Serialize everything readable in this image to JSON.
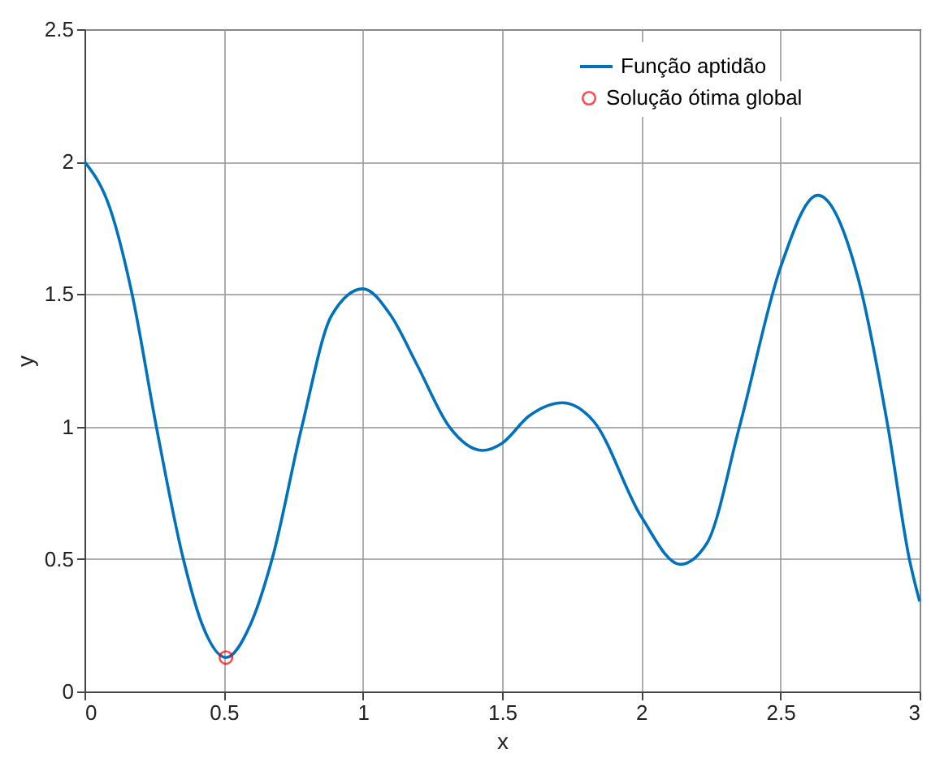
{
  "chart_data": {
    "type": "line",
    "xlabel": "x",
    "ylabel": "y",
    "xlim": [
      0,
      3
    ],
    "ylim": [
      0,
      2.5
    ],
    "xticks": [
      0,
      0.5,
      1,
      1.5,
      2,
      2.5,
      3
    ],
    "yticks": [
      0,
      0.5,
      1,
      1.5,
      2,
      2.5
    ],
    "grid": true,
    "legend": "top right",
    "series": [
      {
        "name": "Função aptidão",
        "color": "#0072bd",
        "marker": "none",
        "line_style": "solid",
        "x": [
          0,
          0.093,
          0.171,
          0.258,
          0.355,
          0.422,
          0.508,
          0.597,
          0.674,
          0.781,
          0.888,
          1.0,
          1.1,
          1.196,
          1.31,
          1.43,
          1.5,
          1.597,
          1.717,
          1.829,
          2.0,
          2.14,
          2.236,
          2.353,
          2.5,
          2.634,
          2.779,
          2.886,
          2.963,
          3.0
        ],
        "values": [
          2.0,
          1.82,
          1.5,
          1.0,
          0.5,
          0.255,
          0.128,
          0.255,
          0.5,
          1.0,
          1.42,
          1.52,
          1.42,
          1.23,
          1.0,
          0.91,
          0.937,
          1.04,
          1.09,
          1.02,
          0.66,
          0.48,
          0.56,
          1.0,
          1.6,
          1.873,
          1.56,
          1.0,
          0.5,
          0.34
        ]
      },
      {
        "name": "Solução ótima global",
        "type": "scatter",
        "color": "#ff0000",
        "marker": "circle",
        "x": [
          0.508
        ],
        "values": [
          0.128
        ]
      }
    ]
  }
}
